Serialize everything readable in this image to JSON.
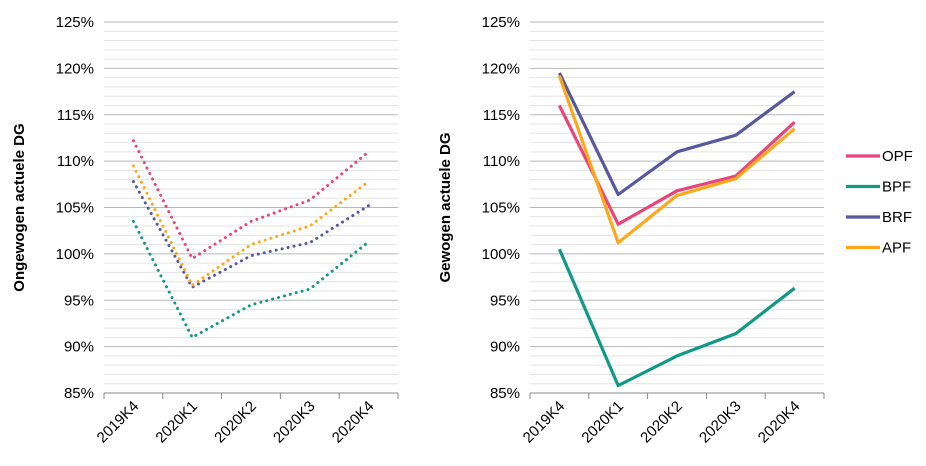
{
  "chart_data": [
    {
      "type": "line",
      "line_style": "dotted",
      "categories": [
        "2019K4",
        "2020K1",
        "2020K2",
        "2020K3",
        "2020K4"
      ],
      "ylabel": "Ongewogen actuele DG",
      "ylim": [
        85,
        125
      ],
      "yticks": [
        "85%",
        "90%",
        "95%",
        "100%",
        "105%",
        "110%",
        "115%",
        "120%",
        "125%"
      ],
      "grid": true,
      "series": [
        {
          "name": "OPF",
          "color": "#E8457A",
          "values": [
            112.2,
            99.5,
            103.5,
            105.8,
            111.0
          ]
        },
        {
          "name": "BPF",
          "color": "#119988",
          "values": [
            103.5,
            91.0,
            94.5,
            96.2,
            101.3
          ]
        },
        {
          "name": "BRF",
          "color": "#58589E",
          "values": [
            107.8,
            96.4,
            99.8,
            101.2,
            105.2
          ]
        },
        {
          "name": "APF",
          "color": "#FBA919",
          "values": [
            109.5,
            96.6,
            101.0,
            103.0,
            107.8
          ]
        }
      ]
    },
    {
      "type": "line",
      "line_style": "solid",
      "categories": [
        "2019K4",
        "2020K1",
        "2020K2",
        "2020K3",
        "2020K4"
      ],
      "ylabel": "Gewogen actuele DG",
      "ylim": [
        85,
        125
      ],
      "yticks": [
        "85%",
        "90%",
        "95%",
        "100%",
        "105%",
        "110%",
        "115%",
        "120%",
        "125%"
      ],
      "grid": true,
      "legend_position": "right",
      "series": [
        {
          "name": "OPF",
          "color": "#E8457A",
          "values": [
            116.0,
            103.2,
            106.8,
            108.4,
            114.2
          ]
        },
        {
          "name": "BPF",
          "color": "#119988",
          "values": [
            100.5,
            85.8,
            89.0,
            91.4,
            96.3
          ]
        },
        {
          "name": "BRF",
          "color": "#58589E",
          "values": [
            119.5,
            106.4,
            111.0,
            112.8,
            117.5
          ]
        },
        {
          "name": "APF",
          "color": "#FBA919",
          "values": [
            119.2,
            101.2,
            106.3,
            108.1,
            113.5
          ]
        }
      ]
    }
  ]
}
